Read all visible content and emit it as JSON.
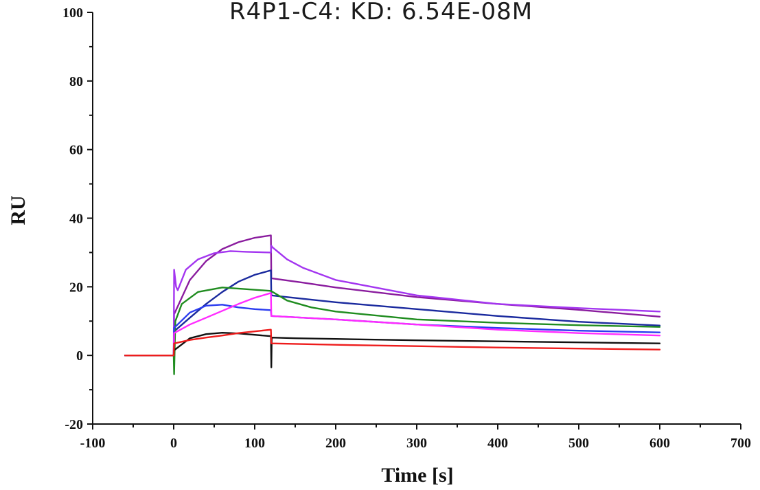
{
  "chart_data": {
    "type": "line",
    "title": "R4P1-C4: KD: 6.54E-08M",
    "xlabel": "Time [s]",
    "ylabel": "RU",
    "xlim": [
      -100,
      700
    ],
    "ylim": [
      -20,
      100
    ],
    "x_ticks": [
      -100,
      0,
      100,
      200,
      300,
      400,
      500,
      600,
      700
    ],
    "y_ticks": [
      -20,
      0,
      20,
      40,
      60,
      80,
      100
    ],
    "grid": false,
    "legend": "none",
    "series": [
      {
        "color": "#8a1c9e",
        "x": [
          -60,
          0,
          0.5,
          20,
          40,
          60,
          80,
          100,
          120,
          120.5,
          160,
          200,
          300,
          400,
          500,
          600
        ],
        "y": [
          0,
          0,
          12,
          22,
          27.5,
          31,
          33,
          34.3,
          35,
          22.5,
          21.2,
          19.8,
          17,
          15,
          13.3,
          11.3
        ]
      },
      {
        "color": "#a335f0",
        "x": [
          -60,
          0,
          0.5,
          3,
          5,
          15,
          30,
          50,
          70,
          90,
          120,
          120.5,
          122,
          140,
          160,
          200,
          300,
          400,
          500,
          600
        ],
        "y": [
          0,
          0,
          25,
          20,
          19,
          25,
          28,
          29.8,
          30.4,
          30.2,
          30,
          32,
          31.5,
          28,
          25.5,
          22,
          17.5,
          15,
          13.8,
          12.8
        ]
      },
      {
        "color": "#1a2a9e",
        "x": [
          -60,
          0,
          0.5,
          20,
          40,
          60,
          80,
          100,
          120,
          120.5,
          160,
          200,
          300,
          400,
          500,
          600
        ],
        "y": [
          0,
          0,
          7,
          11,
          15,
          18.5,
          21.5,
          23.5,
          24.8,
          17.5,
          16.5,
          15.5,
          13.5,
          11.5,
          9.8,
          8.7
        ]
      },
      {
        "color": "#1f8c1f",
        "x": [
          -60,
          0,
          0.5,
          2,
          10,
          30,
          60,
          90,
          120,
          140,
          170,
          200,
          300,
          400,
          500,
          600
        ],
        "y": [
          0,
          0,
          -5.5,
          10,
          15,
          18.5,
          19.8,
          19.3,
          18.8,
          16,
          14,
          12.8,
          10.5,
          9.5,
          8.8,
          8.3
        ]
      },
      {
        "color": "#2b3cf0",
        "x": [
          -60,
          0,
          0.5,
          20,
          40,
          60,
          80,
          100,
          120,
          120.5,
          160,
          200,
          300,
          400,
          500,
          600
        ],
        "y": [
          0,
          0,
          8,
          12.5,
          14.5,
          14.8,
          14,
          13.5,
          13.2,
          11.5,
          11,
          10.5,
          9,
          8,
          7.2,
          6.7
        ]
      },
      {
        "color": "#ff2bff",
        "x": [
          -60,
          0,
          0.5,
          20,
          40,
          60,
          80,
          100,
          120,
          120.5,
          160,
          200,
          300,
          400,
          500,
          600
        ],
        "y": [
          0,
          0,
          6.5,
          9,
          11,
          13,
          15,
          16.8,
          18.2,
          11.5,
          11,
          10.5,
          9,
          7.5,
          6.5,
          5.8
        ]
      },
      {
        "color": "#111111",
        "x": [
          -60,
          0,
          0.5,
          20,
          40,
          60,
          80,
          100,
          120,
          120.5,
          121,
          150,
          200,
          300,
          400,
          500,
          600
        ],
        "y": [
          0,
          0,
          1.5,
          5,
          6.2,
          6.6,
          6.4,
          6,
          5.6,
          -3.5,
          5.2,
          5,
          4.8,
          4.4,
          4.1,
          3.8,
          3.5
        ]
      },
      {
        "color": "#ee1c1c",
        "x": [
          -60,
          0,
          0.5,
          20,
          40,
          60,
          80,
          100,
          120,
          120.5,
          160,
          200,
          300,
          400,
          500,
          600
        ],
        "y": [
          0,
          0,
          3.5,
          4.5,
          5.2,
          5.8,
          6.5,
          7,
          7.5,
          3.5,
          3.3,
          3.1,
          2.7,
          2.3,
          2,
          1.7
        ]
      }
    ]
  }
}
